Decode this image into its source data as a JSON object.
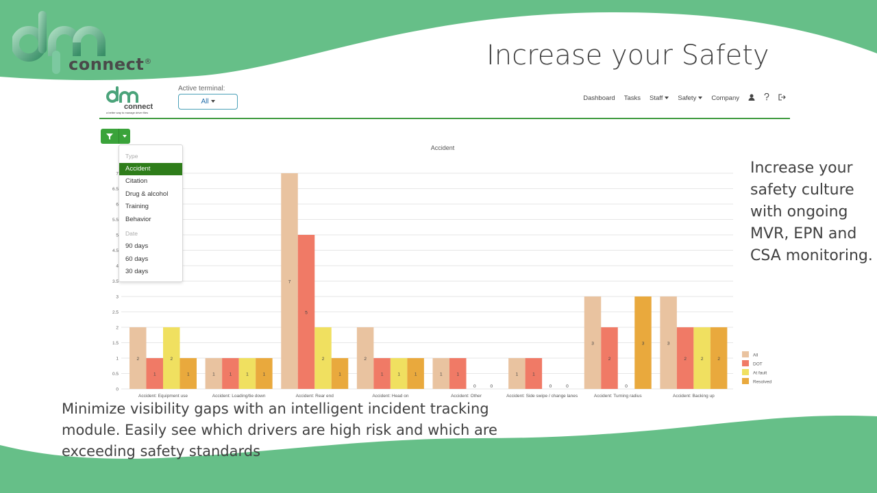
{
  "slide": {
    "title": "Increase your Safety",
    "side_text": "Increase your safety culture with  ongoing MVR, EPN and CSA monitoring.",
    "bottom_text": "Minimize visibility gaps with an intelligent incident tracking module. Easily see which drivers are high risk and which are exceeding safety standards"
  },
  "brand": {
    "name": "connect",
    "mark": "®"
  },
  "app": {
    "logo_word": "connect",
    "logo_tagline": "a better way to manage driver files",
    "terminal_label": "Active terminal:",
    "terminal_value": "All",
    "nav": [
      "Dashboard",
      "Tasks",
      "Staff",
      "Safety",
      "Company"
    ],
    "nav_icons": [
      "user-icon",
      "help-icon",
      "logout-icon"
    ]
  },
  "filter": {
    "icon": "filter-icon",
    "headers": {
      "type": "Type",
      "date": "Date"
    },
    "type_items": [
      "Accident",
      "Citation",
      "Drug & alcohol",
      "Training",
      "Behavior"
    ],
    "selected_type": "Accident",
    "date_items": [
      "90 days",
      "60 days",
      "30 days"
    ]
  },
  "colors": {
    "green": "#66bf88",
    "accent": "#3aa33a"
  },
  "chart_data": {
    "type": "bar",
    "title": "Accident",
    "categories": [
      "Accident: Equipment use",
      "Accident: Loading/tie down",
      "Accident: Rear end",
      "Accident: Head on",
      "Accident: Other",
      "Accident: Side swipe / change lanes",
      "Accident: Turning radius",
      "Accident: Backing up"
    ],
    "series": [
      {
        "name": "All",
        "color": "#e9c3a0",
        "values": [
          2,
          1,
          7,
          2,
          1,
          1,
          3,
          3
        ]
      },
      {
        "name": "DOT",
        "color": "#f07a66",
        "values": [
          1,
          1,
          5,
          1,
          1,
          1,
          2,
          2
        ]
      },
      {
        "name": "At fault",
        "color": "#f0e060",
        "values": [
          2,
          1,
          2,
          1,
          0,
          0,
          0,
          2
        ]
      },
      {
        "name": "Resolved",
        "color": "#e9a93d",
        "values": [
          1,
          1,
          1,
          1,
          0,
          0,
          3,
          2
        ]
      }
    ],
    "yticks": [
      "0",
      "0.5",
      "1",
      "1.5",
      "2",
      "2.5",
      "3",
      "3.5",
      "4",
      "4.5",
      "5",
      "5.5",
      "6",
      "6.5",
      "7"
    ],
    "ylim": [
      0,
      7
    ],
    "grid": true,
    "legend": "right"
  }
}
